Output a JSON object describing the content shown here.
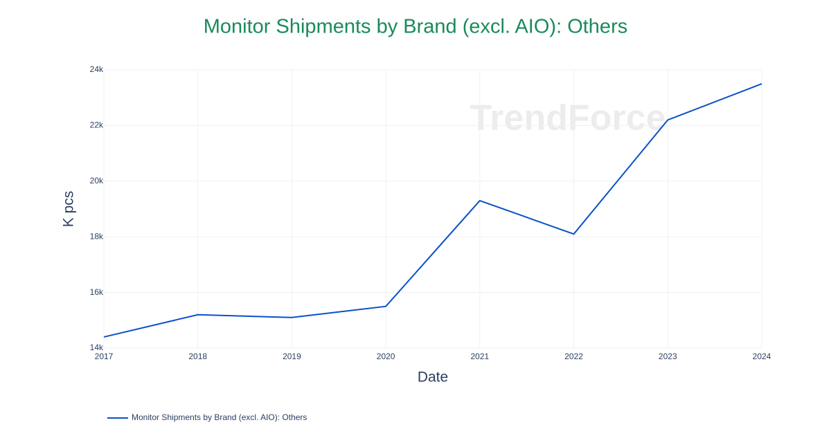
{
  "chart_data": {
    "type": "line",
    "title": "Monitor Shipments by Brand (excl. AIO): Others",
    "x_label": "Date",
    "y_label": "K pcs",
    "watermark": "TrendForce",
    "x": [
      2017,
      2018,
      2019,
      2020,
      2021,
      2022,
      2023,
      2024
    ],
    "series": [
      {
        "name": "Monitor Shipments by Brand (excl. AIO): Others",
        "color": "#0a50c8",
        "values": [
          14400,
          15200,
          15100,
          15500,
          19300,
          18100,
          22200,
          23500
        ]
      }
    ],
    "xlim": [
      2017,
      2024
    ],
    "xticks": [
      2017,
      2018,
      2019,
      2020,
      2021,
      2022,
      2023,
      2024
    ],
    "ylim": [
      14000,
      24000
    ],
    "yticks": [
      {
        "value": 14000,
        "label": "14k"
      },
      {
        "value": 16000,
        "label": "16k"
      },
      {
        "value": 18000,
        "label": "18k"
      },
      {
        "value": 20000,
        "label": "20k"
      },
      {
        "value": 22000,
        "label": "22k"
      },
      {
        "value": 24000,
        "label": "24k"
      }
    ],
    "grid": true,
    "legend": "bottom-left"
  }
}
